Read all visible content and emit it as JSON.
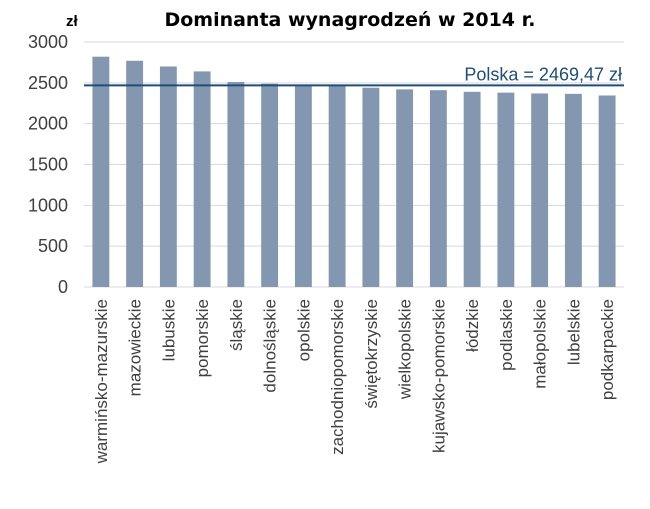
{
  "chart_data": {
    "type": "bar",
    "title": "Dominanta wynagrodzeń w 2014 r.",
    "unit_label": "zł",
    "xlabel": "",
    "ylabel": "",
    "ylim": [
      0,
      3000
    ],
    "yticks": [
      0,
      500,
      1000,
      1500,
      2000,
      2500,
      3000
    ],
    "grid": true,
    "categories": [
      "warmińsko-mazurskie",
      "mazowieckie",
      "lubuskie",
      "pomorskie",
      "śląskie",
      "dolnośląskie",
      "opolskie",
      "zachodniopomorskie",
      "świętokrzyskie",
      "wielkopolskie",
      "kujawsko-pomorskie",
      "łódzkie",
      "podlaskie",
      "małopolskie",
      "lubelskie",
      "podkarpackie"
    ],
    "values": [
      2820,
      2770,
      2700,
      2640,
      2510,
      2490,
      2470,
      2470,
      2440,
      2420,
      2410,
      2390,
      2380,
      2370,
      2365,
      2345
    ],
    "reference_line": {
      "value": 2469.47,
      "label": "Polska =  2469,47 zł"
    },
    "colors": {
      "bar": "#8497b0",
      "reference": "#1f4e79",
      "grid": "#d9d9d9"
    }
  }
}
